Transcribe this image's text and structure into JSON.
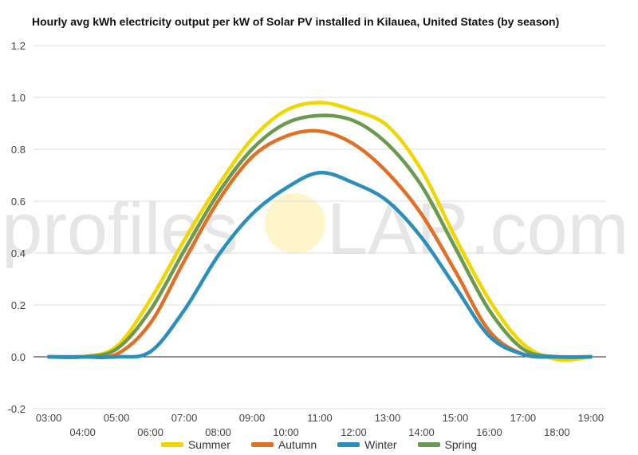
{
  "watermark": {
    "text_left": "profiles",
    "text_right": "LAR.com"
  },
  "chart_data": {
    "type": "line",
    "title": "Hourly avg kWh electricity output per kW of Solar PV installed in Kilauea, United States (by season)",
    "xlabel": "",
    "ylabel": "",
    "x": [
      3,
      4,
      5,
      6,
      7,
      8,
      9,
      10,
      11,
      12,
      13,
      14,
      15,
      16,
      17,
      18,
      19
    ],
    "x_tick_labels": [
      "03:00",
      "04:00",
      "05:00",
      "06:00",
      "07:00",
      "08:00",
      "09:00",
      "10:00",
      "11:00",
      "12:00",
      "13:00",
      "14:00",
      "15:00",
      "16:00",
      "17:00",
      "18:00",
      "19:00"
    ],
    "ylim": [
      -0.2,
      1.2
    ],
    "y_ticks": [
      -0.2,
      0.0,
      0.2,
      0.4,
      0.6,
      0.8,
      1.0,
      1.2
    ],
    "grid": true,
    "legend": "bottom",
    "series": [
      {
        "name": "Summer",
        "color": "#f2d600",
        "values": [
          0.0,
          0.0,
          0.04,
          0.22,
          0.45,
          0.66,
          0.84,
          0.95,
          0.98,
          0.95,
          0.89,
          0.72,
          0.46,
          0.22,
          0.05,
          -0.01,
          0.0
        ]
      },
      {
        "name": "Autumn",
        "color": "#e07025",
        "values": [
          0.0,
          0.0,
          0.01,
          0.13,
          0.37,
          0.6,
          0.77,
          0.85,
          0.87,
          0.82,
          0.71,
          0.55,
          0.33,
          0.1,
          0.01,
          0.0,
          0.0
        ]
      },
      {
        "name": "Winter",
        "color": "#2a8fbd",
        "values": [
          0.0,
          0.0,
          0.0,
          0.02,
          0.18,
          0.39,
          0.55,
          0.65,
          0.71,
          0.67,
          0.6,
          0.46,
          0.27,
          0.08,
          0.01,
          0.0,
          0.0
        ]
      },
      {
        "name": "Spring",
        "color": "#6a9a50",
        "values": [
          0.0,
          0.0,
          0.03,
          0.18,
          0.41,
          0.63,
          0.8,
          0.9,
          0.93,
          0.91,
          0.82,
          0.66,
          0.42,
          0.18,
          0.03,
          0.0,
          0.0
        ]
      }
    ]
  }
}
